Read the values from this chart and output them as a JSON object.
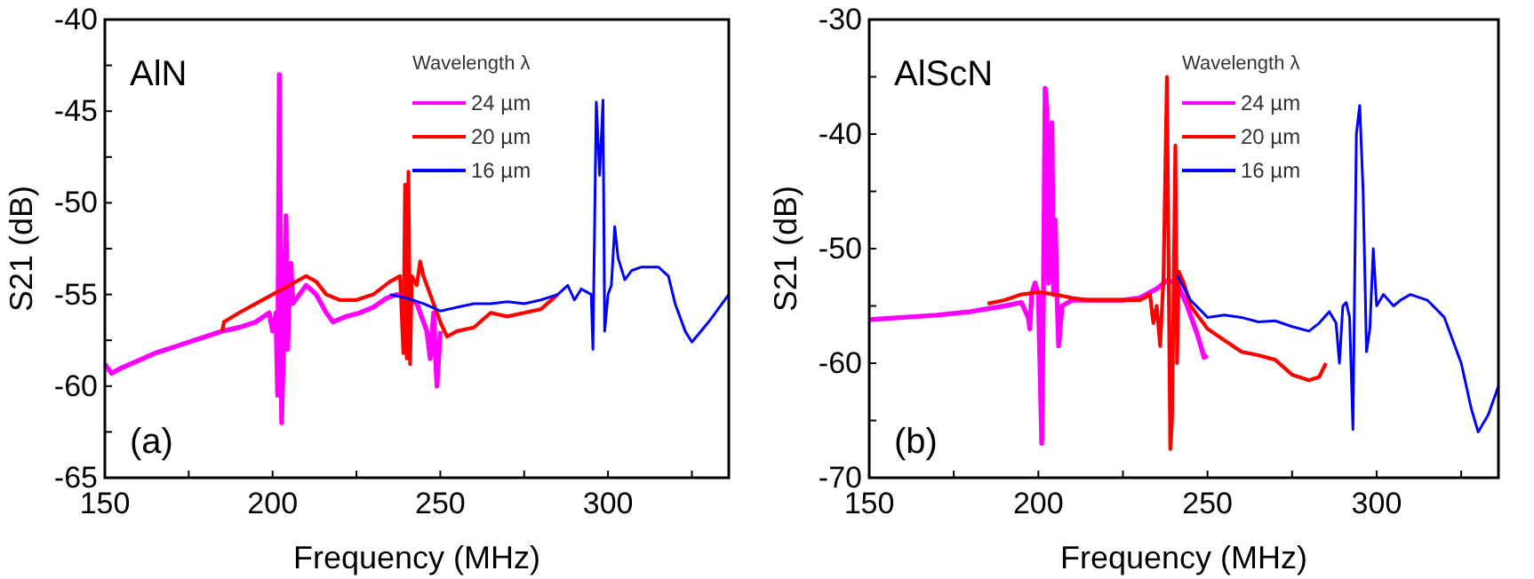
{
  "chart_data": [
    {
      "type": "line",
      "xlabel": "Frequency (MHz)",
      "ylabel": "S21 (dB)",
      "legend_title": "Wavelength λ",
      "legend": "top right",
      "grid": false,
      "annotations": [
        "AlN",
        "(a)"
      ],
      "xlim": [
        150,
        336
      ],
      "xticks": [
        150,
        {
          "value": 175,
          "label": null
        },
        200,
        {
          "value": 225,
          "label": null
        },
        250,
        {
          "value": 275,
          "label": null
        },
        300,
        {
          "value": 325,
          "label": null
        }
      ],
      "ylim": [
        -65,
        -40
      ],
      "yticks": [
        -65,
        {
          "value": -62.5,
          "label": null
        },
        -60,
        {
          "value": -57.5,
          "label": null
        },
        -55,
        {
          "value": -52.5,
          "label": null
        },
        -50,
        {
          "value": -47.5,
          "label": null
        },
        -45,
        {
          "value": -42.5,
          "label": null
        },
        -40
      ],
      "series": [
        {
          "name": "24 µm",
          "color": "#ff00ff",
          "x": [
            150,
            152,
            155,
            160,
            165,
            170,
            175,
            180,
            185,
            190,
            195,
            199,
            200,
            201,
            201.5,
            202,
            202.7,
            203.5,
            204,
            204.5,
            205,
            205.5,
            206,
            208,
            210,
            213,
            216,
            218,
            222,
            226,
            230,
            234,
            237,
            240,
            243,
            245,
            246,
            247,
            248,
            249,
            250
          ],
          "values": [
            -58.8,
            -59.3,
            -59,
            -58.6,
            -58.2,
            -57.9,
            -57.6,
            -57.3,
            -57,
            -56.8,
            -56.5,
            -56,
            -57,
            -56,
            -60.5,
            -43,
            -62,
            -56,
            -50.7,
            -58,
            -55,
            -53.3,
            -55.5,
            -55,
            -54.5,
            -55,
            -56,
            -56.5,
            -56.2,
            -56,
            -55.7,
            -55.2,
            -55,
            -55.1,
            -55.5,
            -56.5,
            -57,
            -58.5,
            -56,
            -60,
            -57
          ]
        },
        {
          "name": "20 µm",
          "color": "#ff0000",
          "x": [
            185,
            185.5,
            190,
            195,
            200,
            205,
            210,
            213,
            216,
            220,
            225,
            230,
            235,
            238,
            239,
            239.5,
            240,
            240.5,
            241,
            241.5,
            243,
            244,
            245,
            248,
            250,
            252,
            255,
            260,
            265,
            270,
            275,
            280,
            285
          ],
          "values": [
            -57,
            -56.5,
            -56,
            -55.5,
            -55,
            -54.5,
            -54,
            -54.3,
            -55,
            -55.3,
            -55.3,
            -55,
            -54.3,
            -54,
            -58.2,
            -49,
            -58.5,
            -48.3,
            -58.8,
            -54,
            -54.5,
            -53.2,
            -54,
            -55.5,
            -56.5,
            -57.3,
            -57,
            -56.8,
            -56,
            -56.2,
            -56,
            -55.8,
            -55
          ]
        },
        {
          "name": "16 µm",
          "color": "#0000ff",
          "x": [
            235,
            240,
            245,
            250,
            255,
            260,
            265,
            270,
            275,
            280,
            285,
            288,
            290,
            292,
            295,
            295.5,
            296.5,
            297.5,
            298.5,
            299,
            300,
            301,
            302,
            303,
            305,
            307,
            310,
            315,
            318,
            320,
            323,
            325,
            330,
            336
          ],
          "values": [
            -55,
            -55.2,
            -55.5,
            -55.9,
            -55.7,
            -55.5,
            -55.5,
            -55.4,
            -55.5,
            -55.3,
            -55,
            -54.5,
            -55.3,
            -54.7,
            -55,
            -58,
            -44.5,
            -48.5,
            -44.4,
            -57,
            -55,
            -54.5,
            -51.3,
            -53,
            -54.2,
            -53.7,
            -53.5,
            -53.5,
            -54,
            -55.5,
            -57,
            -57.6,
            -56.5,
            -55
          ]
        }
      ]
    },
    {
      "type": "line",
      "xlabel": "Frequency (MHz)",
      "ylabel": "S21 (dB)",
      "legend_title": "Wavelength λ",
      "legend": "top right",
      "grid": false,
      "annotations": [
        "AlScN",
        "(b)"
      ],
      "xlim": [
        150,
        336
      ],
      "xticks": [
        150,
        {
          "value": 175,
          "label": null
        },
        200,
        {
          "value": 225,
          "label": null
        },
        250,
        {
          "value": 275,
          "label": null
        },
        300,
        {
          "value": 325,
          "label": null
        }
      ],
      "ylim": [
        -70,
        -30
      ],
      "yticks": [
        -70,
        {
          "value": -65,
          "label": null
        },
        -60,
        {
          "value": -55,
          "label": null
        },
        -50,
        {
          "value": -45,
          "label": null
        },
        -40,
        {
          "value": -35,
          "label": null
        },
        -30
      ],
      "series": [
        {
          "name": "24 µm",
          "color": "#ff00ff",
          "x": [
            150,
            160,
            170,
            180,
            190,
            195,
            197,
            197.5,
            198,
            199,
            200,
            201,
            201.5,
            202,
            202.5,
            203,
            204,
            204.5,
            205,
            205.5,
            206,
            207,
            210,
            215,
            220,
            225,
            230,
            235,
            238,
            241,
            244,
            247,
            249,
            250
          ],
          "values": [
            -56.2,
            -56,
            -55.8,
            -55.5,
            -55,
            -54.7,
            -56,
            -57,
            -54,
            -53,
            -54,
            -67,
            -54,
            -36,
            -37.5,
            -53,
            -39,
            -54,
            -47.5,
            -54,
            -58.5,
            -55,
            -54.5,
            -54.5,
            -54.5,
            -54.5,
            -54.3,
            -53.5,
            -52.8,
            -53,
            -55,
            -57.5,
            -59.5,
            -59.3
          ]
        },
        {
          "name": "20 µm",
          "color": "#ff0000",
          "x": [
            185,
            190,
            195,
            200,
            205,
            210,
            215,
            220,
            230,
            233,
            234,
            235,
            236,
            237,
            238,
            239,
            239.5,
            240.5,
            241,
            241.5,
            243,
            245,
            250,
            255,
            260,
            265,
            270,
            275,
            280,
            283,
            285
          ],
          "values": [
            -54.8,
            -54.5,
            -54,
            -53.8,
            -54,
            -54.3,
            -54.5,
            -54.5,
            -54.5,
            -54,
            -56.5,
            -55,
            -58.5,
            -52.5,
            -35,
            -67.5,
            -65,
            -41,
            -60,
            -52,
            -53,
            -55,
            -57,
            -58,
            -59,
            -59.3,
            -59.7,
            -61,
            -61.5,
            -61.2,
            -60
          ]
        },
        {
          "name": "16 µm",
          "color": "#0000ff",
          "x": [
            241,
            245,
            250,
            255,
            260,
            265,
            270,
            275,
            280,
            283,
            286,
            288,
            289,
            290,
            291,
            292,
            293,
            294,
            295,
            296,
            297,
            298,
            299,
            300,
            302,
            305,
            307,
            310,
            315,
            320,
            325,
            328,
            330,
            333,
            336
          ],
          "values": [
            -52.3,
            -54.5,
            -56,
            -55.8,
            -56,
            -56.4,
            -56.3,
            -56.8,
            -57.2,
            -56.5,
            -55.5,
            -56.5,
            -60,
            -55,
            -54.7,
            -56,
            -65.8,
            -40,
            -37.5,
            -45,
            -59,
            -57,
            -50,
            -55,
            -54,
            -55,
            -54.5,
            -54,
            -54.5,
            -56,
            -60,
            -64,
            -66,
            -64.5,
            -62
          ]
        }
      ]
    }
  ]
}
